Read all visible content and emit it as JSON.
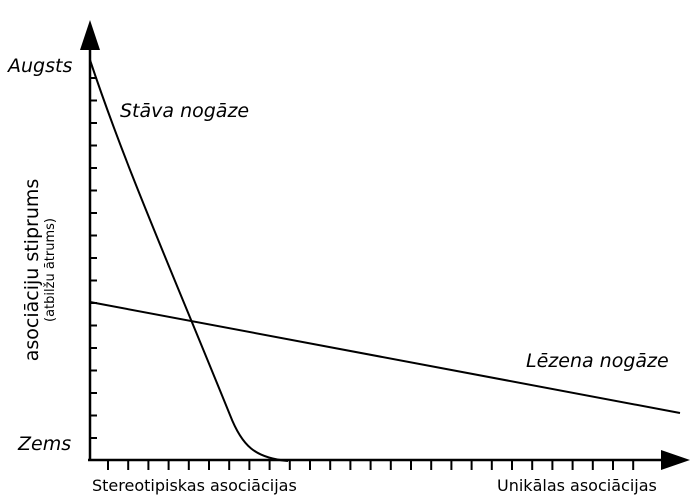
{
  "diagram": {
    "y_axis": {
      "title": "asociāciju stiprums",
      "subtitle": "(atbilžu ātrums)",
      "high_label": "Augsts",
      "low_label": "Zems"
    },
    "x_axis": {
      "left_label": "Stereotipiskas asociācijas",
      "right_label": "Unikālas asociācijas"
    },
    "curves": {
      "steep_label": "Stāva nogāze",
      "gentle_label": "Lēzena nogāze"
    },
    "colors": {
      "line": "#000000",
      "background": "#ffffff"
    }
  }
}
